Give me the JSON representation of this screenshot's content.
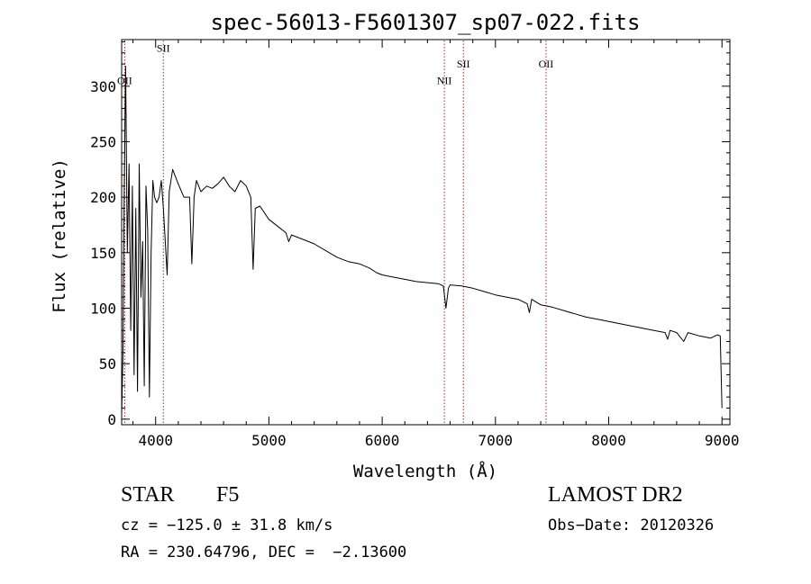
{
  "chart_data": {
    "type": "line",
    "title": "spec-56013-F5601307_sp07-022.fits",
    "xlabel": "Wavelength (Å)",
    "ylabel": "Flux (relative)",
    "xlim": [
      3700,
      9070
    ],
    "ylim": [
      -5,
      342
    ],
    "xticks": [
      4000,
      5000,
      6000,
      7000,
      8000,
      9000
    ],
    "yticks": [
      0,
      50,
      100,
      150,
      200,
      250,
      300
    ],
    "grid": false,
    "line_color": "#000000",
    "marker_color": "#a52a2a",
    "lines": [
      {
        "label": "OII",
        "x": 3727,
        "label_y": 302
      },
      {
        "label": "SII",
        "x": 4068,
        "label_y": 331
      },
      {
        "label": "NII",
        "x": 6549,
        "label_y": 302
      },
      {
        "label": "SII",
        "x": 6717,
        "label_y": 317
      },
      {
        "label": "OII",
        "x": 7447,
        "label_y": 317
      }
    ],
    "spectrum": {
      "x": [
        3700,
        3712,
        3722,
        3735,
        3750,
        3765,
        3780,
        3795,
        3810,
        3825,
        3840,
        3855,
        3870,
        3885,
        3900,
        3915,
        3930,
        3945,
        3960,
        3975,
        3990,
        4010,
        4030,
        4050,
        4068,
        4085,
        4102,
        4120,
        4150,
        4200,
        4250,
        4300,
        4320,
        4340,
        4360,
        4400,
        4450,
        4500,
        4550,
        4600,
        4650,
        4700,
        4750,
        4800,
        4840,
        4861,
        4880,
        4920,
        5000,
        5100,
        5150,
        5175,
        5200,
        5300,
        5400,
        5500,
        5600,
        5700,
        5800,
        5890,
        5950,
        6000,
        6100,
        6200,
        6300,
        6400,
        6500,
        6540,
        6563,
        6585,
        6600,
        6700,
        6800,
        6900,
        7000,
        7100,
        7200,
        7280,
        7300,
        7320,
        7400,
        7500,
        7600,
        7700,
        7800,
        7900,
        8000,
        8100,
        8200,
        8300,
        8400,
        8498,
        8520,
        8542,
        8600,
        8662,
        8700,
        8800,
        8900,
        8960,
        8985,
        9000
      ],
      "y": [
        5,
        60,
        200,
        318,
        150,
        230,
        80,
        210,
        40,
        190,
        25,
        230,
        110,
        160,
        30,
        210,
        170,
        20,
        150,
        215,
        200,
        195,
        200,
        215,
        190,
        160,
        130,
        205,
        225,
        212,
        200,
        200,
        140,
        200,
        215,
        205,
        210,
        208,
        212,
        218,
        210,
        205,
        215,
        210,
        200,
        135,
        190,
        192,
        180,
        172,
        168,
        160,
        166,
        162,
        158,
        152,
        146,
        142,
        140,
        136,
        132,
        130,
        128,
        126,
        124,
        123,
        122,
        120,
        100,
        118,
        121,
        120,
        118,
        115,
        112,
        110,
        108,
        104,
        96,
        108,
        103,
        101,
        98,
        95,
        92,
        90,
        88,
        86,
        84,
        82,
        80,
        78,
        72,
        80,
        78,
        70,
        78,
        75,
        73,
        76,
        75,
        10
      ]
    }
  },
  "info": {
    "object_class": "STAR",
    "subclass": "F5",
    "survey": "LAMOST DR2",
    "cz": "cz = −125.0 ± 31.8 km/s",
    "obs_date": "Obs−Date: 20120326",
    "coords": "RA = 230.64796, DEC =  −2.13600"
  }
}
